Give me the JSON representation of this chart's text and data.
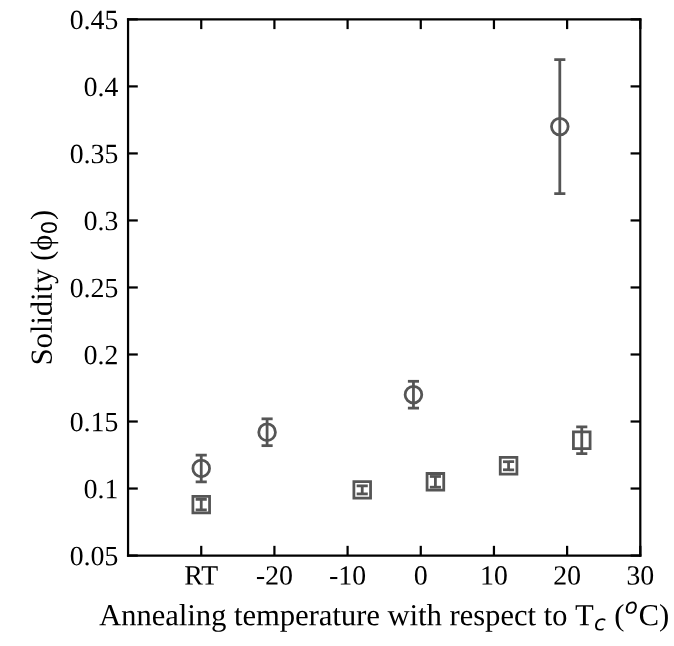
{
  "chart_data": {
    "type": "scatter",
    "xlabel": "Annealing temperature with respect to T$_{c}$ ($^{o}$C)",
    "ylabel": "Solidity (ϕ$_{0}$)",
    "xlim": [
      -40,
      30
    ],
    "xticks": [
      {
        "value": -30,
        "label": "RT"
      },
      -20,
      -10,
      0,
      10,
      20,
      30
    ],
    "ylim": [
      0.05,
      0.45
    ],
    "yticks": [
      0.05,
      0.1,
      0.15,
      0.2,
      0.25,
      0.3,
      0.35,
      0.4,
      0.45
    ],
    "grid": false,
    "legend": false,
    "series": [
      {
        "color": "#555555",
        "marker": "circle",
        "x": [
          -30,
          -21,
          -1,
          19
        ],
        "values": [
          0.115,
          0.142,
          0.17,
          0.37
        ],
        "errors": [
          0.01,
          0.01,
          0.01,
          0.05
        ]
      },
      {
        "color": "#555555",
        "marker": "square",
        "x": [
          -30,
          -8,
          2,
          12,
          22
        ],
        "values": [
          0.088,
          0.099,
          0.105,
          0.117,
          0.136
        ],
        "errors": [
          0.004,
          0.003,
          0.004,
          0.003,
          0.01
        ]
      }
    ]
  }
}
